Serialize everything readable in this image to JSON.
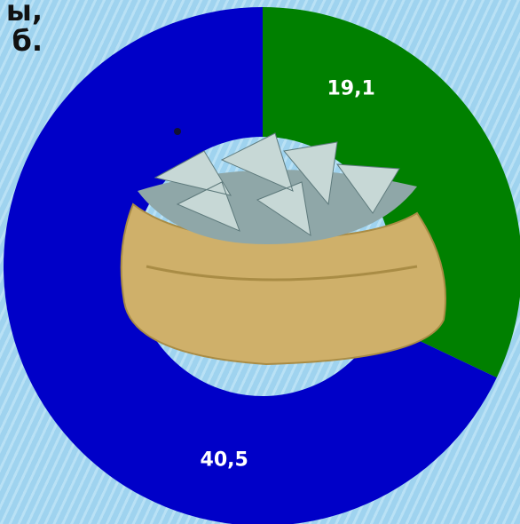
{
  "header_text": [
    "ы,",
    "б."
  ],
  "chart_data": {
    "type": "donut",
    "categories": [
      null,
      null
    ],
    "values": [
      19.1,
      40.5
    ],
    "value_labels": [
      "19,1",
      "40,5"
    ],
    "colors": [
      "#008000",
      "#0000c8"
    ]
  }
}
